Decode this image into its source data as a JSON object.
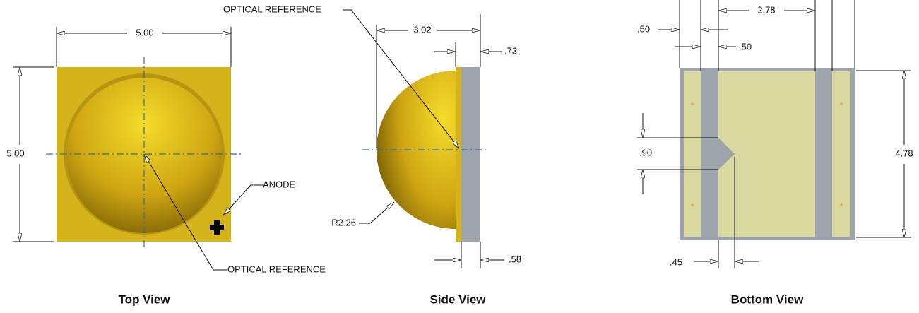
{
  "views": [
    {
      "caption": "Top View",
      "labels": {
        "width": "5.00",
        "height": "5.00",
        "anode": "ANODE",
        "optical_reference": "OPTICAL REFERENCE"
      }
    },
    {
      "caption": "Side View",
      "labels": {
        "optical_reference": "OPTICAL REFERENCE",
        "depth": "3.02",
        "flange": ".73",
        "radius": "R2.26",
        "substrate": ".58"
      }
    },
    {
      "caption": "Bottom View",
      "labels": {
        "pad_outer": ".50",
        "pad_gap": "2.78",
        "pad_strip": ".50",
        "notch_height": ".90",
        "height": "4.78",
        "notch_depth": ".45"
      }
    }
  ]
}
